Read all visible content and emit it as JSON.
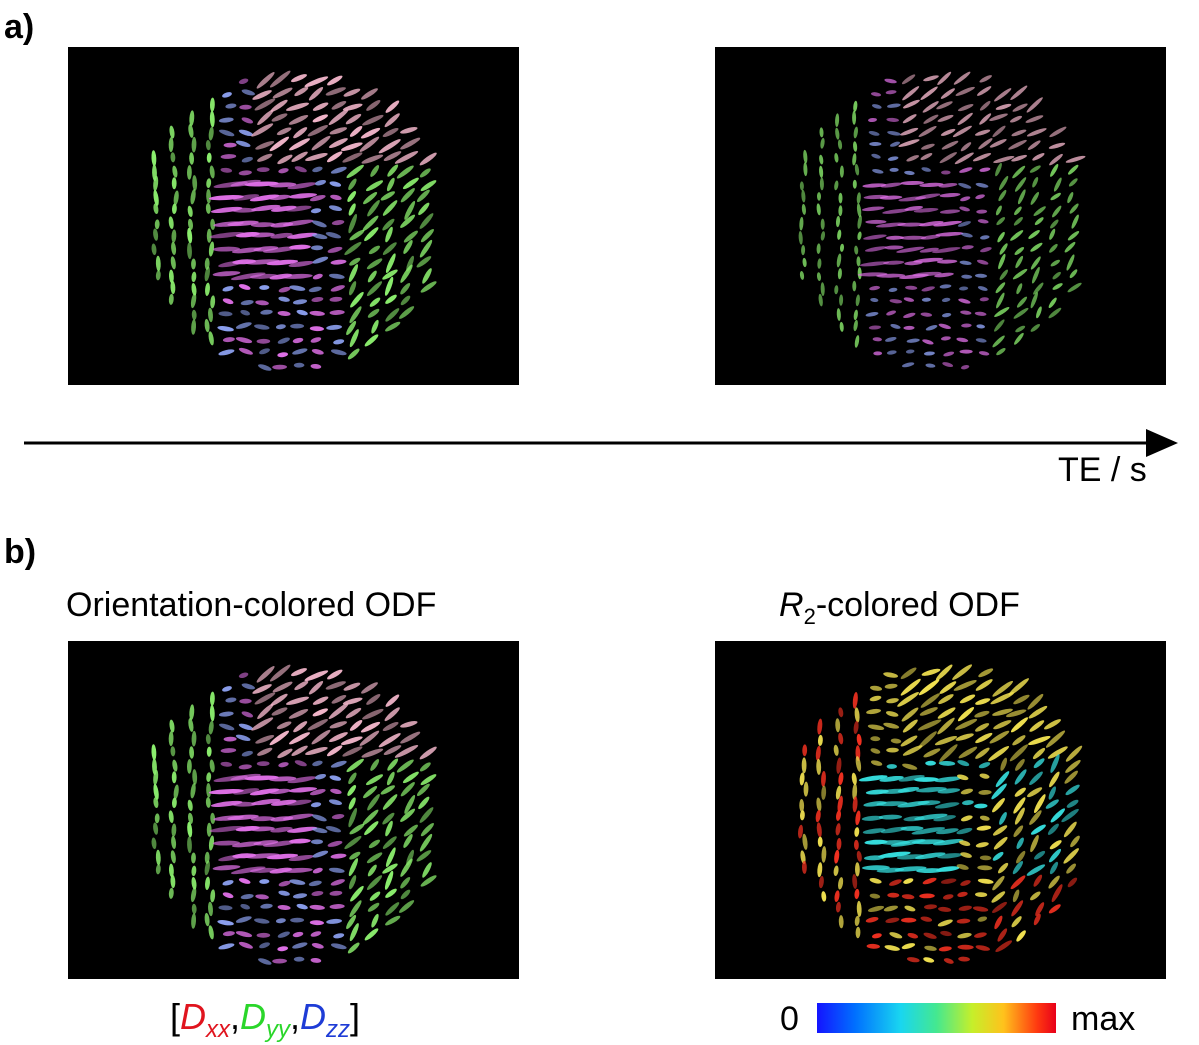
{
  "panel_a": {
    "label": "a)"
  },
  "axis": {
    "label": "TE / s"
  },
  "panel_b": {
    "label": "b)",
    "left_title": "Orientation-colored  ODF",
    "right_title_symbol": "R",
    "right_title_sub": "2",
    "right_title_rest": "-colored  ODF",
    "orientation_legend": {
      "open": "[",
      "close": "]",
      "sep": ",",
      "dxx": {
        "base": "D",
        "sub": "xx",
        "color": "#e0141e"
      },
      "dyy": {
        "base": "D",
        "sub": "yy",
        "color": "#2ad62a"
      },
      "dzz": {
        "base": "D",
        "sub": "zz",
        "color": "#1e3cd6"
      }
    },
    "colorbar": {
      "min_label": "0",
      "max_label": "max"
    }
  },
  "colors": {
    "background": "#000000",
    "magenta": "#e070e8",
    "green": "#8cf06e",
    "pink": "#f0b4c8",
    "blue": "#8ca0f0",
    "cyan": "#36e0e0",
    "yellow": "#f0e050",
    "red": "#f03020"
  }
}
